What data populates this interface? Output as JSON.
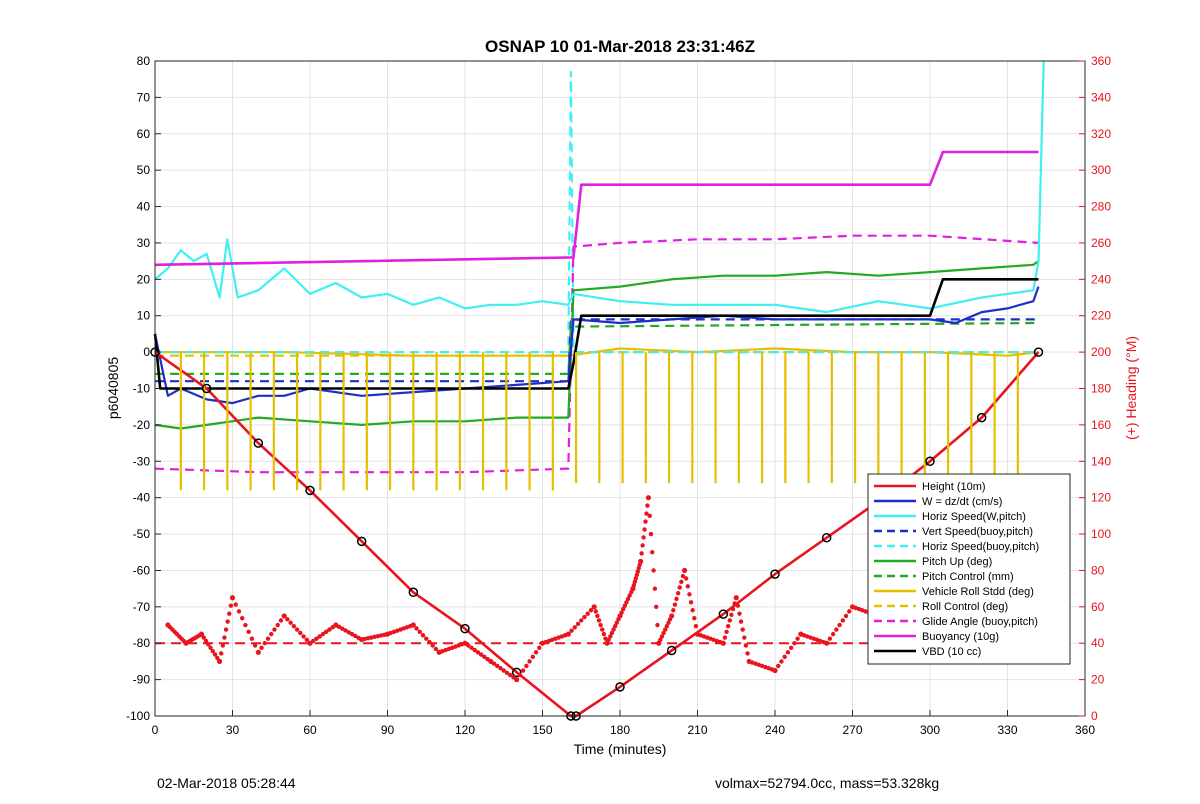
{
  "chart_data": {
    "type": "line",
    "title": "OSNAP 10 01-Mar-2018 23:31:46Z",
    "xlabel": "Time (minutes)",
    "ylabel": "p6040805",
    "y2label": "(+) Heading (°M)",
    "xlim": [
      0,
      360
    ],
    "ylim": [
      -100,
      80
    ],
    "y2lim": [
      0,
      360
    ],
    "xticks": [
      "0",
      "30",
      "60",
      "90",
      "120",
      "150",
      "180",
      "210",
      "240",
      "270",
      "300",
      "330",
      "360"
    ],
    "yticks": [
      "-100",
      "-90",
      "-80",
      "-70",
      "-60",
      "-50",
      "-40",
      "-30",
      "-20",
      "-10",
      "0",
      "10",
      "20",
      "30",
      "40",
      "50",
      "60",
      "70",
      "80"
    ],
    "y2ticks": [
      "0",
      "20",
      "40",
      "60",
      "80",
      "100",
      "120",
      "140",
      "160",
      "180",
      "200",
      "220",
      "240",
      "260",
      "280",
      "300",
      "320",
      "340",
      "360"
    ],
    "grid": true,
    "legend_position": "bottom-right",
    "colors": {
      "height": "#e8141e",
      "w": "#1f2ec8",
      "horiz_w": "#3ff0f0",
      "vert_buoy": "#1f2ec8",
      "horiz_buoy": "#3ff0f0",
      "pitch_up": "#22aa22",
      "pitch_control": "#22aa22",
      "roll": "#e6c000",
      "roll_control": "#e6c000",
      "glide": "#e020e0",
      "buoyancy": "#e020e0",
      "vbd": "#000000",
      "heading": "#e8141e"
    },
    "series": [
      {
        "key": "height",
        "name": "Height (10m)",
        "style": "solid",
        "x": [
          0,
          20,
          40,
          60,
          80,
          100,
          120,
          140,
          161,
          163,
          180,
          200,
          220,
          240,
          260,
          280,
          300,
          320,
          342
        ],
        "y": [
          0,
          -10,
          -25,
          -38,
          -52,
          -66,
          -76,
          -88,
          -100,
          -100,
          -92,
          -82,
          -72,
          -61,
          -51,
          -41,
          -30,
          -18,
          0
        ]
      },
      {
        "key": "w",
        "name": "W = dz/dt (cm/s)",
        "style": "solid",
        "x": [
          0,
          5,
          10,
          20,
          30,
          40,
          50,
          60,
          80,
          100,
          120,
          140,
          160,
          162,
          180,
          200,
          220,
          240,
          260,
          280,
          300,
          310,
          320,
          330,
          340,
          342
        ],
        "y": [
          5,
          -12,
          -10,
          -13,
          -14,
          -12,
          -12,
          -10,
          -12,
          -11,
          -10,
          -9,
          -8,
          9,
          8,
          9,
          10,
          9,
          9,
          9,
          9,
          8,
          11,
          12,
          14,
          18
        ]
      },
      {
        "key": "horiz_w",
        "name": "Horiz Speed(W,pitch)",
        "style": "solid",
        "x": [
          0,
          5,
          10,
          15,
          20,
          25,
          28,
          32,
          40,
          50,
          60,
          70,
          80,
          90,
          100,
          110,
          120,
          130,
          140,
          150,
          160,
          162,
          180,
          200,
          220,
          240,
          260,
          280,
          300,
          320,
          340,
          342,
          344
        ],
        "y": [
          20,
          23,
          28,
          25,
          27,
          15,
          31,
          15,
          17,
          23,
          16,
          19,
          15,
          16,
          13,
          15,
          12,
          13,
          13,
          14,
          13,
          16,
          14,
          13,
          13,
          13,
          11,
          14,
          12,
          15,
          17,
          25,
          80
        ]
      },
      {
        "key": "vert_buoy",
        "name": "Vert Speed(buoy,pitch)",
        "style": "dashed",
        "x": [
          0,
          160,
          161,
          342
        ],
        "y": [
          -8,
          -8,
          9,
          9
        ]
      },
      {
        "key": "horiz_buoy",
        "name": "Horiz Speed(buoy,pitch)",
        "style": "dashed",
        "x": [
          0,
          160,
          161,
          162,
          342
        ],
        "y": [
          0,
          0,
          77,
          0,
          0
        ]
      },
      {
        "key": "pitch_up",
        "name": "Pitch Up (deg)",
        "style": "solid",
        "x": [
          0,
          10,
          20,
          40,
          60,
          80,
          100,
          120,
          140,
          160,
          162,
          180,
          200,
          220,
          240,
          260,
          280,
          300,
          320,
          340,
          342
        ],
        "y": [
          -20,
          -21,
          -20,
          -18,
          -19,
          -20,
          -19,
          -19,
          -18,
          -18,
          17,
          18,
          20,
          21,
          21,
          22,
          21,
          22,
          23,
          24,
          25
        ]
      },
      {
        "key": "pitch_control",
        "name": "Pitch Control (mm)",
        "style": "dashed",
        "x": [
          0,
          160,
          161,
          342
        ],
        "y": [
          -6,
          -6,
          7,
          8
        ]
      },
      {
        "key": "roll",
        "name": "Vehicle Roll Stdd (deg)",
        "style": "solid",
        "x": [
          0,
          50,
          100,
          150,
          160,
          180,
          210,
          240,
          270,
          300,
          330,
          342
        ],
        "y": [
          0,
          0,
          -1,
          -1,
          -1,
          1,
          0,
          1,
          0,
          0,
          -1,
          0
        ]
      },
      {
        "key": "roll_control",
        "name": "Roll Control (deg)",
        "style": "dashed",
        "x": [
          0,
          160,
          161,
          342
        ],
        "y": [
          -1,
          -1,
          0,
          0
        ]
      },
      {
        "key": "glide",
        "name": "Glide Angle (buoy,pitch)",
        "style": "dashed",
        "x": [
          0,
          40,
          80,
          120,
          160,
          162,
          180,
          210,
          240,
          270,
          300,
          342
        ],
        "y": [
          -32,
          -33,
          -33,
          -33,
          -32,
          29,
          30,
          31,
          31,
          32,
          32,
          30
        ]
      },
      {
        "key": "buoyancy",
        "name": "Buoyancy (10g)",
        "style": "solid",
        "x": [
          0,
          160,
          162,
          165,
          250,
          300,
          305,
          342
        ],
        "y": [
          24,
          26,
          26,
          46,
          46,
          46,
          55,
          55
        ]
      },
      {
        "key": "vbd",
        "name": "VBD (10 cc)",
        "style": "solid",
        "x": [
          0,
          2,
          160,
          162,
          165,
          250,
          300,
          305,
          342
        ],
        "y": [
          5,
          -10,
          -10,
          -3,
          10,
          10,
          10,
          20,
          20
        ]
      }
    ],
    "heading": {
      "name": "Heading",
      "axis": "right",
      "x": [
        5,
        12,
        18,
        25,
        30,
        40,
        50,
        60,
        70,
        80,
        90,
        100,
        110,
        120,
        130,
        140,
        150,
        160,
        170,
        175,
        180,
        185,
        188,
        191,
        195,
        200,
        205,
        210,
        220,
        225,
        230,
        240,
        250,
        260,
        270,
        280,
        290,
        300,
        310,
        320,
        330,
        340
      ],
      "y": [
        50,
        40,
        45,
        30,
        65,
        35,
        55,
        40,
        50,
        42,
        45,
        50,
        35,
        40,
        30,
        20,
        40,
        45,
        60,
        40,
        55,
        70,
        85,
        120,
        40,
        55,
        80,
        45,
        40,
        65,
        30,
        25,
        45,
        40,
        60,
        55,
        35,
        50,
        45,
        40,
        50,
        44
      ]
    }
  },
  "footer": {
    "left": "02-Mar-2018 05:28:44",
    "right": "volmax=52794.0cc, mass=53.328kg"
  }
}
